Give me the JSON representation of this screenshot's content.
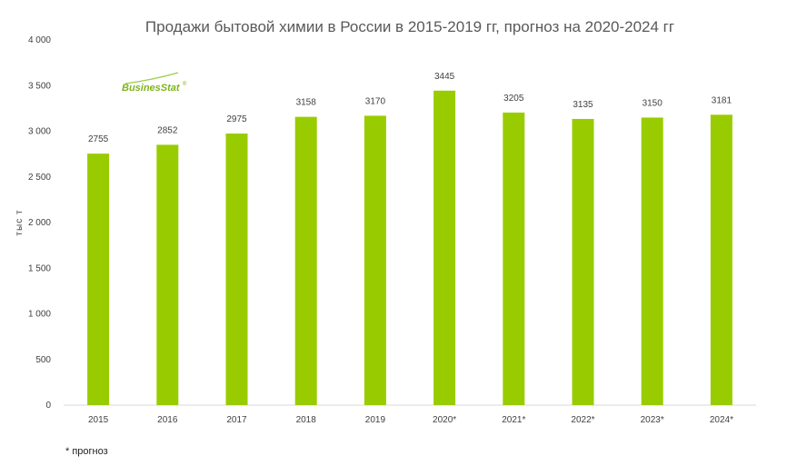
{
  "colors": {
    "bar": "#99CC00",
    "axis": "#d9d9d9",
    "text": "#404040",
    "logo": "#7fb41e"
  },
  "logo": {
    "text": "BusinesStat",
    "trademark": "®"
  },
  "footnote": "* прогноз",
  "chart_data": {
    "type": "bar",
    "title": "Продажи бытовой химии в России в 2015-2019 гг, прогноз на 2020-2024 гг",
    "xlabel": "",
    "ylabel": "тыс т",
    "categories": [
      "2015",
      "2016",
      "2017",
      "2018",
      "2019",
      "2020*",
      "2021*",
      "2022*",
      "2023*",
      "2024*"
    ],
    "values": [
      2755,
      2852,
      2975,
      3158,
      3170,
      3445,
      3205,
      3135,
      3150,
      3181
    ],
    "ylim": [
      0,
      4000
    ],
    "yticks": [
      "0",
      "500",
      "1 000",
      "1 500",
      "2 000",
      "2 500",
      "3 000",
      "3 500",
      "4 000"
    ],
    "grid": false,
    "data_labels": true
  }
}
